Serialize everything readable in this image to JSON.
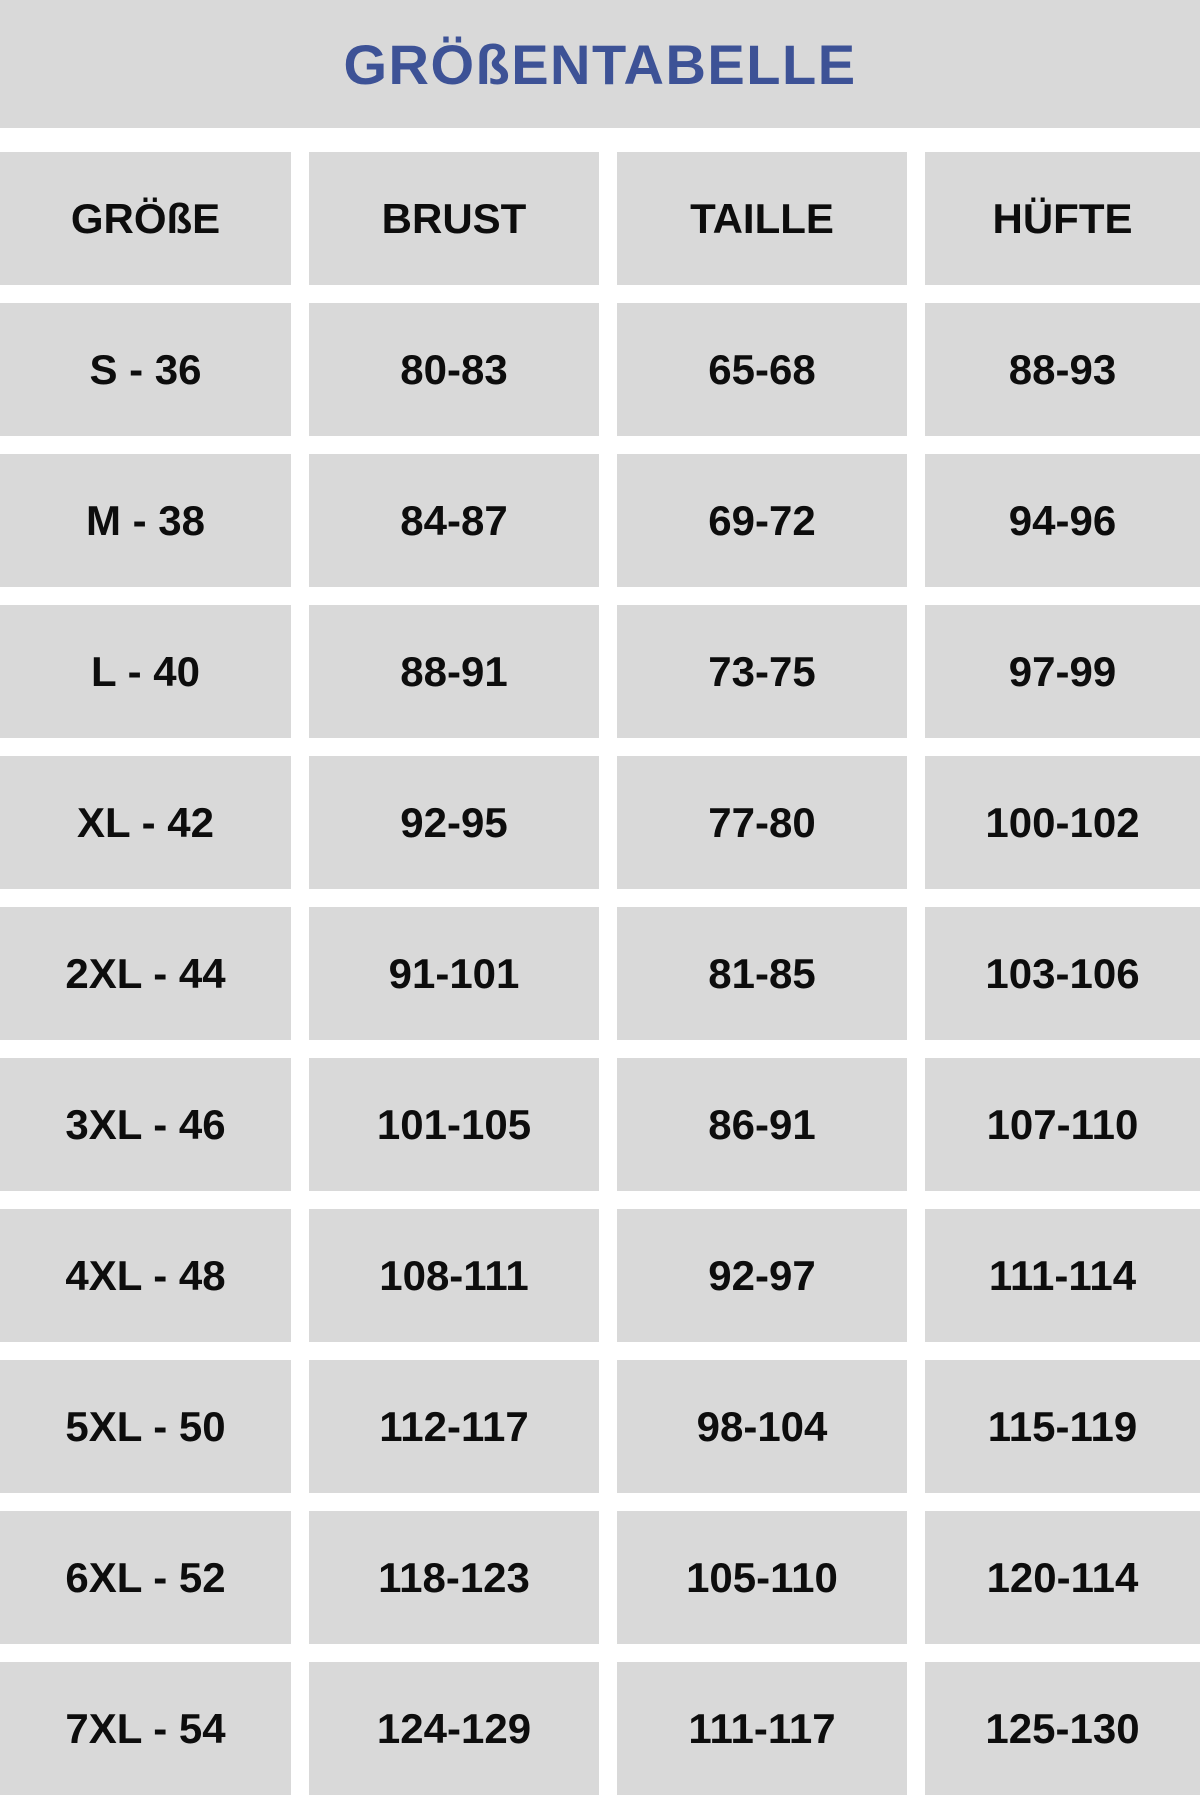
{
  "title": "GRÖßENTABELLE",
  "colors": {
    "title_blue": "#3D5296",
    "cell_gray": "#D9D9D9",
    "text_black": "#0D0D0D",
    "background": "#FFFFFF"
  },
  "chart_data": {
    "type": "table",
    "title": "GRÖßENTABELLE",
    "columns": [
      "GRÖßE",
      "BRUST",
      "TAILLE",
      "HÜFTE"
    ],
    "rows": [
      [
        "S - 36",
        "80-83",
        "65-68",
        "88-93"
      ],
      [
        "M - 38",
        "84-87",
        "69-72",
        "94-96"
      ],
      [
        "L - 40",
        "88-91",
        "73-75",
        "97-99"
      ],
      [
        "XL - 42",
        "92-95",
        "77-80",
        "100-102"
      ],
      [
        "2XL - 44",
        "91-101",
        "81-85",
        "103-106"
      ],
      [
        "3XL - 46",
        "101-105",
        "86-91",
        "107-110"
      ],
      [
        "4XL - 48",
        "108-111",
        "92-97",
        "111-114"
      ],
      [
        "5XL - 50",
        "112-117",
        "98-104",
        "115-119"
      ],
      [
        "6XL - 52",
        "118-123",
        "105-110",
        "120-114"
      ],
      [
        "7XL - 54",
        "124-129",
        "111-117",
        "125-130"
      ]
    ],
    "layout": {
      "legend": "none",
      "grid": "off",
      "header_row": true,
      "units_implied": "cm"
    }
  }
}
